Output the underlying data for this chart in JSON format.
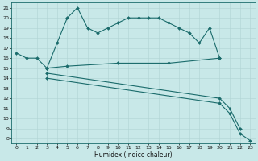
{
  "xlabel": "Humidex (Indice chaleur)",
  "bg_color": "#c8e8e8",
  "grid_color": "#b0d4d4",
  "line_color": "#1a6b6b",
  "xlim_min": -0.5,
  "xlim_max": 23.5,
  "ylim_min": 7.5,
  "ylim_max": 21.5,
  "yticks": [
    8,
    9,
    10,
    11,
    12,
    13,
    14,
    15,
    16,
    17,
    18,
    19,
    20,
    21
  ],
  "xticks": [
    0,
    1,
    2,
    3,
    4,
    5,
    6,
    7,
    8,
    9,
    10,
    11,
    12,
    13,
    14,
    15,
    16,
    17,
    18,
    19,
    20,
    21,
    22,
    23
  ],
  "line1_x": [
    0,
    1,
    2,
    3,
    4,
    5,
    6,
    7,
    8,
    9,
    10,
    11,
    12,
    13,
    14,
    15,
    16,
    17,
    18,
    19,
    20
  ],
  "line1_y": [
    16.5,
    16.0,
    16.0,
    15.0,
    17.5,
    20.0,
    21.0,
    19.0,
    18.5,
    19.0,
    19.5,
    20.0,
    20.0,
    20.0,
    20.0,
    19.5,
    19.0,
    18.5,
    17.5,
    19.0,
    16.0
  ],
  "line2_x": [
    3,
    5,
    10,
    15,
    20
  ],
  "line2_y": [
    15.0,
    15.2,
    15.5,
    15.5,
    16.0
  ],
  "line3_x": [
    3,
    20,
    21,
    22
  ],
  "line3_y": [
    14.5,
    12.0,
    11.0,
    9.0
  ],
  "line4_x": [
    3,
    20,
    21,
    22,
    23
  ],
  "line4_y": [
    14.0,
    11.5,
    10.5,
    8.5,
    7.8
  ],
  "linewidth": 0.8,
  "markersize": 2.0,
  "tick_fontsize": 4.5,
  "xlabel_fontsize": 5.5
}
